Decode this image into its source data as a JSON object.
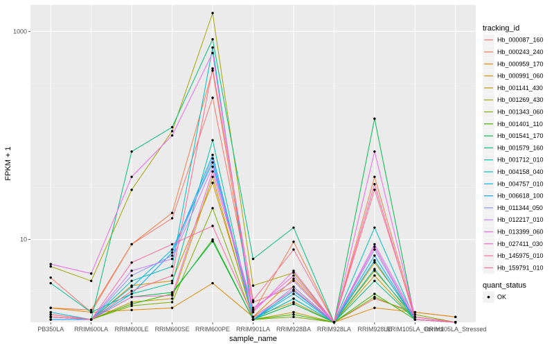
{
  "chart_data": {
    "type": "line",
    "title": "",
    "xlabel": "sample_name",
    "ylabel": "FPKM + 1",
    "y_scale": "log10",
    "ylim": [
      1.6,
      1800
    ],
    "y_ticks": [
      10,
      1000
    ],
    "grid": true,
    "legend_placement": "right",
    "categories": [
      "PB350LA",
      "RRIM600LA",
      "RRIM600LE",
      "RRIM600SE",
      "RRIM600PE",
      "RRIM901LA",
      "RRIM928BA",
      "RRIM928LA",
      "RRIM928LE",
      "RRIM105LA_Control",
      "RRIM105LA_Stressed"
    ],
    "series": [
      {
        "name": "Hb_000087_160",
        "color": "#F8766D",
        "values": [
          4.3,
          2.0,
          9.0,
          16,
          230,
          2.5,
          3.5,
          1.6,
          2.7,
          2.0,
          1.8
        ]
      },
      {
        "name": "Hb_000243_240",
        "color": "#EF7F47",
        "values": [
          2.2,
          2.1,
          9.0,
          18,
          420,
          2.0,
          9.5,
          1.6,
          40,
          1.8,
          1.6
        ]
      },
      {
        "name": "Hb_000959_170",
        "color": "#E38900",
        "values": [
          2.2,
          2.0,
          2.1,
          2.2,
          3.8,
          1.8,
          4.2,
          1.6,
          2.2,
          2.0,
          1.8
        ]
      },
      {
        "name": "Hb_000991_060",
        "color": "#D39200",
        "values": [
          1.7,
          1.7,
          3.6,
          4.0,
          35,
          1.8,
          2.5,
          1.6,
          6.0,
          1.8,
          1.6
        ]
      },
      {
        "name": "Hb_001141_430",
        "color": "#C09B00",
        "values": [
          1.9,
          1.7,
          2.5,
          2.7,
          40,
          1.7,
          2.0,
          1.6,
          4.5,
          1.7,
          1.6
        ]
      },
      {
        "name": "Hb_001269_430",
        "color": "#A3A500",
        "values": [
          5.5,
          4.0,
          30,
          110,
          1500,
          3.6,
          4.8,
          1.6,
          5.0,
          1.8,
          1.6
        ]
      },
      {
        "name": "Hb_001343_060",
        "color": "#7CAE00",
        "values": [
          1.8,
          1.7,
          2.3,
          2.5,
          20,
          1.7,
          1.8,
          1.6,
          2.8,
          1.9,
          1.6
        ]
      },
      {
        "name": "Hb_001401_110",
        "color": "#39B600",
        "values": [
          1.8,
          1.7,
          2.4,
          3.0,
          10,
          1.7,
          1.9,
          1.6,
          3.0,
          1.7,
          1.6
        ]
      },
      {
        "name": "Hb_001541_170",
        "color": "#00BB4E",
        "values": [
          1.7,
          1.7,
          2.8,
          3.1,
          9.6,
          1.7,
          2.4,
          1.6,
          145,
          1.7,
          1.6
        ]
      },
      {
        "name": "Hb_001579_160",
        "color": "#00BF7D",
        "values": [
          1.7,
          1.7,
          70,
          120,
          840,
          6.5,
          13,
          1.6,
          4.0,
          1.7,
          1.6
        ]
      },
      {
        "name": "Hb_001712_010",
        "color": "#00C1A3",
        "values": [
          3.8,
          2.0,
          3.0,
          3.8,
          90,
          1.7,
          2.7,
          1.6,
          5.2,
          1.7,
          1.6
        ]
      },
      {
        "name": "Hb_004158_040",
        "color": "#00BFC4",
        "values": [
          1.7,
          1.7,
          4.0,
          5.5,
          700,
          1.7,
          2.7,
          1.6,
          13,
          1.7,
          1.6
        ]
      },
      {
        "name": "Hb_004757_010",
        "color": "#00B8E7",
        "values": [
          2.0,
          1.7,
          3.5,
          8.0,
          55,
          1.7,
          3.0,
          1.6,
          6.3,
          1.7,
          1.6
        ]
      },
      {
        "name": "Hb_006618_100",
        "color": "#00A9FF",
        "values": [
          1.7,
          1.7,
          3.0,
          7.5,
          65,
          1.7,
          3.2,
          1.6,
          7.0,
          1.7,
          1.6
        ]
      },
      {
        "name": "Hb_011344_050",
        "color": "#8494FF",
        "values": [
          1.8,
          1.7,
          4.5,
          7.0,
          60,
          1.7,
          3.5,
          1.6,
          8.0,
          1.7,
          1.6
        ]
      },
      {
        "name": "Hb_012217_010",
        "color": "#C77CFF",
        "values": [
          1.8,
          1.7,
          5.0,
          6.5,
          50,
          2.2,
          4.0,
          1.6,
          9.0,
          1.8,
          1.6
        ]
      },
      {
        "name": "Hb_013399_060",
        "color": "#ED68ED",
        "values": [
          5.8,
          4.7,
          40,
          100,
          620,
          2.0,
          5.0,
          1.6,
          70,
          1.8,
          1.6
        ]
      },
      {
        "name": "Hb_027411_030",
        "color": "#FF61CC",
        "values": [
          1.8,
          1.7,
          2.8,
          2.9,
          45,
          2.1,
          4.5,
          1.6,
          8.5,
          1.7,
          1.6
        ]
      },
      {
        "name": "Hb_145975_010",
        "color": "#FF67A4",
        "values": [
          1.8,
          1.7,
          6.0,
          9.0,
          13.5,
          1.8,
          3.3,
          1.6,
          34,
          1.7,
          1.6
        ]
      },
      {
        "name": "Hb_159791_010",
        "color": "#FF6C91",
        "values": [
          1.9,
          1.7,
          3.2,
          4.5,
          440,
          2.6,
          8.0,
          1.6,
          30,
          1.8,
          1.6
        ]
      }
    ],
    "legend_title": "tracking_id",
    "shape_legend": {
      "title": "quant_status",
      "items": [
        "OK"
      ]
    }
  }
}
